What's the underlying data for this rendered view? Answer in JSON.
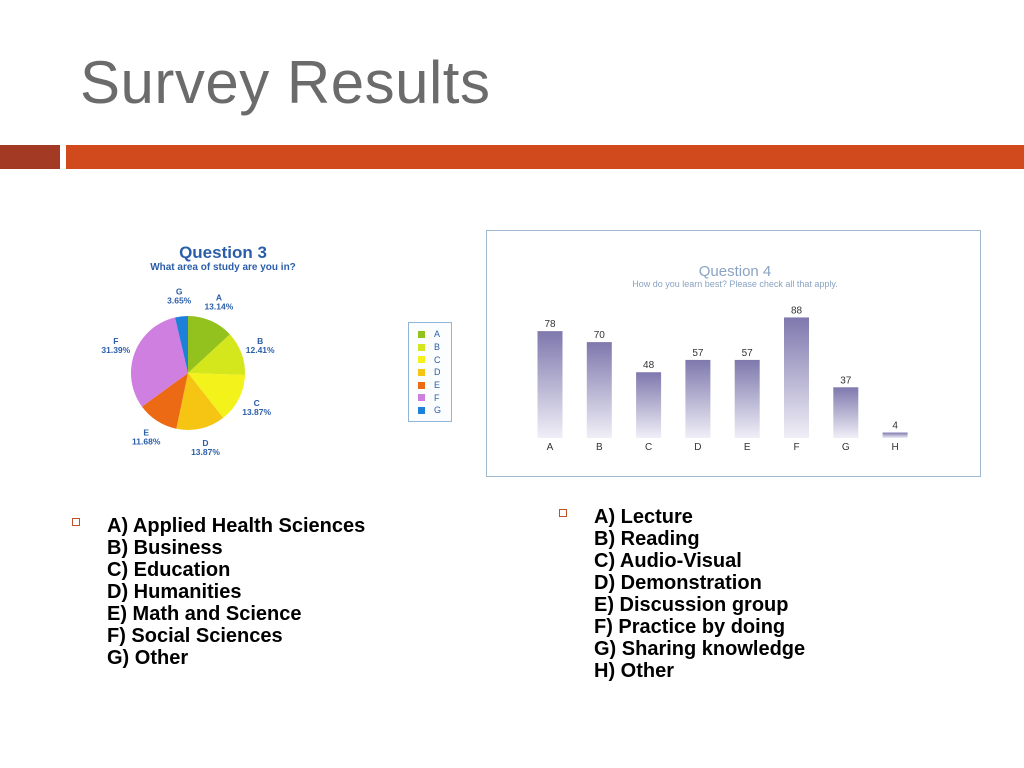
{
  "slide": {
    "title": "Survey Results"
  },
  "colors": {
    "accent_dark": "#a33a23",
    "accent": "#d04a1e",
    "bullet": "#c0502a",
    "question_title": "#2b5ea8"
  },
  "lists": {
    "study_areas": [
      "A) Applied Health Sciences",
      "B) Business",
      "C) Education",
      "D) Humanities",
      "E) Math and Science",
      "F) Social Sciences",
      "G) Other"
    ],
    "learning_styles": [
      "A) Lecture",
      "B) Reading",
      "C) Audio-Visual",
      "D) Demonstration",
      "E) Discussion group",
      "F) Practice by doing",
      "G) Sharing knowledge",
      "H) Other"
    ]
  },
  "chart_data": [
    {
      "type": "pie",
      "title": "Question 3",
      "subtitle": "What area of study are you in?",
      "labels": [
        "A",
        "B",
        "C",
        "D",
        "E",
        "F",
        "G"
      ],
      "values": [
        13.14,
        12.41,
        13.87,
        13.87,
        11.68,
        31.39,
        3.65
      ],
      "value_labels": [
        "13.14%",
        "12.41%",
        "13.87%",
        "13.87%",
        "11.68%",
        "31.39%",
        "3.65%"
      ],
      "colors": [
        "#93c21f",
        "#d4e61c",
        "#f4f21b",
        "#f6c514",
        "#eb6a13",
        "#cf7fe0",
        "#1e80d8"
      ],
      "legend": [
        "A",
        "B",
        "C",
        "D",
        "E",
        "F",
        "G"
      ],
      "legend_position": "right"
    },
    {
      "type": "bar",
      "title": "Question 4",
      "subtitle": "How do you learn best? Please check all that apply.",
      "categories": [
        "A",
        "B",
        "C",
        "D",
        "E",
        "F",
        "G",
        "H"
      ],
      "values": [
        78,
        70,
        48,
        57,
        57,
        88,
        37,
        4
      ],
      "ylim": [
        0,
        100
      ],
      "bar_color": "#7e78ad"
    }
  ]
}
